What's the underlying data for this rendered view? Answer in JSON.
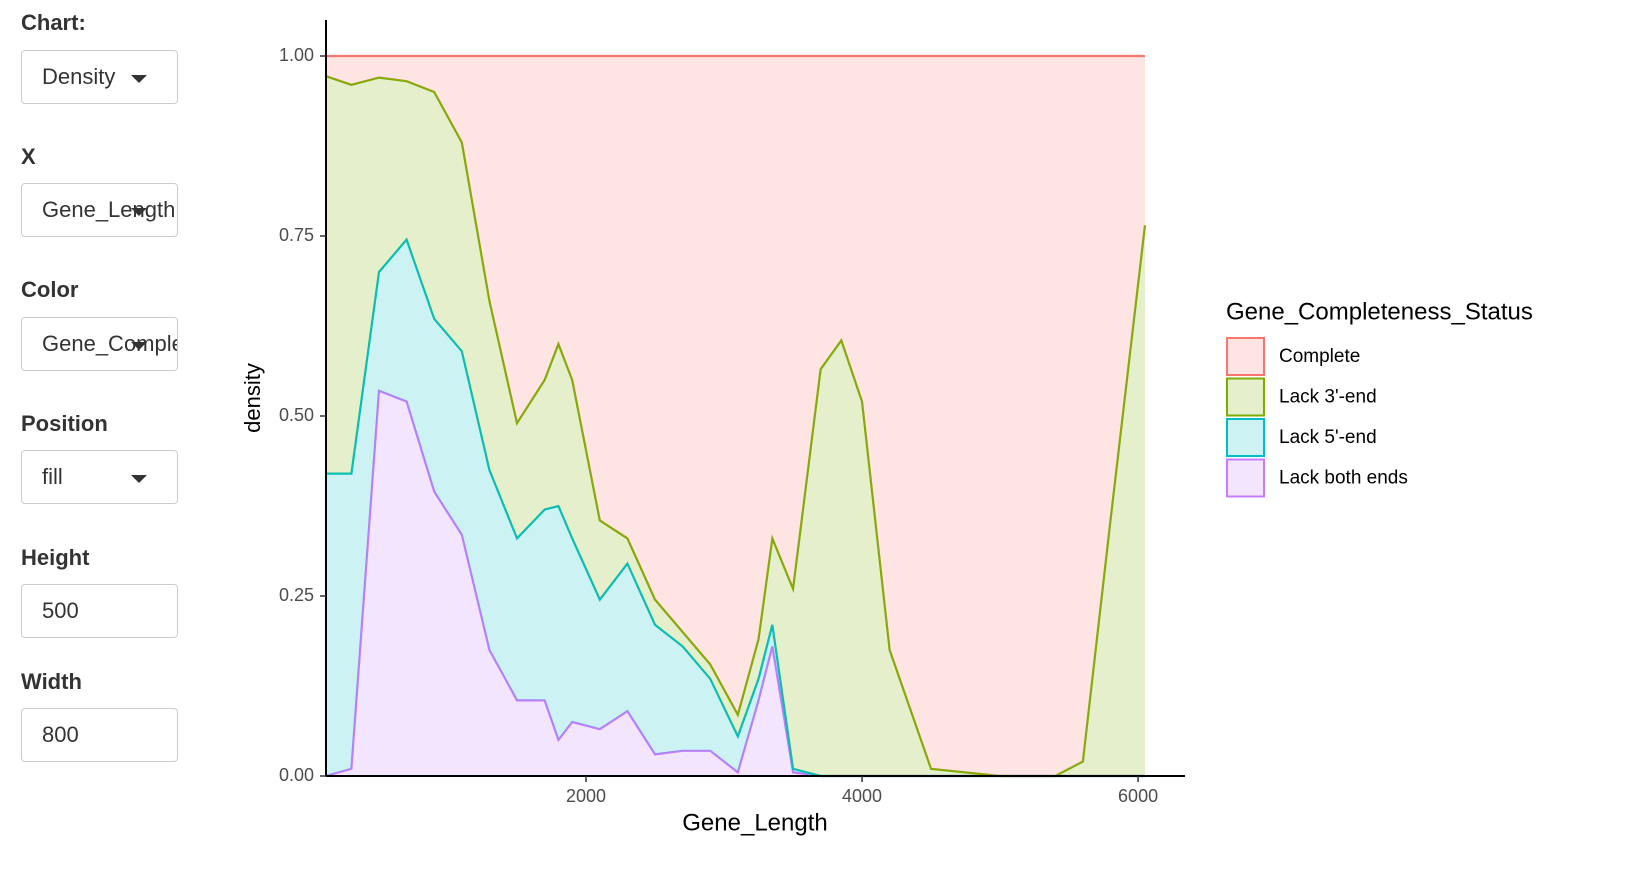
{
  "sidebar": {
    "fields": [
      {
        "label": "Chart:",
        "value": "Density",
        "kind": "select"
      },
      {
        "label": "X",
        "value": "Gene_Length",
        "kind": "select"
      },
      {
        "label": "Color",
        "value": "Gene_Completeness_Status",
        "kind": "select"
      },
      {
        "label": "Position",
        "value": "fill",
        "kind": "select"
      },
      {
        "label": "Height",
        "value": "500",
        "kind": "input"
      },
      {
        "label": "Width",
        "value": "800",
        "kind": "input"
      }
    ]
  },
  "chart_data": {
    "type": "area",
    "stacked": true,
    "x_label": "Gene_Length",
    "y_label": "density",
    "legend_title": "Gene_Completeness_Status",
    "x": [
      116,
      300,
      500,
      700,
      900,
      1100,
      1300,
      1500,
      1700,
      1800,
      1900,
      2100,
      2300,
      2500,
      2700,
      2900,
      3100,
      3250,
      3350,
      3500,
      3700,
      3850,
      4000,
      4200,
      4500,
      5000,
      5400,
      5600,
      5800,
      6050
    ],
    "series": [
      {
        "name": "Complete",
        "color": "#F8766D",
        "values": [
          0.028,
          0.04,
          0.03,
          0.035,
          0.05,
          0.12,
          0.34,
          0.51,
          0.45,
          0.4,
          0.45,
          0.645,
          0.67,
          0.755,
          0.8,
          0.845,
          0.915,
          0.81,
          0.67,
          0.74,
          0.435,
          0.395,
          0.48,
          0.825,
          0.99,
          1,
          1,
          0.98,
          0.645,
          0.235
        ]
      },
      {
        "name": "Lack 3'-end",
        "color": "#7CAE00",
        "values": [
          0.552,
          0.54,
          0.27,
          0.22,
          0.315,
          0.29,
          0.235,
          0.16,
          0.18,
          0.225,
          0.22,
          0.11,
          0.035,
          0.035,
          0.02,
          0.02,
          0.03,
          0.055,
          0.12,
          0.25,
          0.565,
          0.605,
          0.52,
          0.175,
          0.01,
          0,
          0,
          0.02,
          0.355,
          0.765
        ]
      },
      {
        "name": "Lack 5'-end",
        "color": "#00BFC4",
        "values": [
          0.42,
          0.41,
          0.165,
          0.225,
          0.24,
          0.255,
          0.25,
          0.225,
          0.265,
          0.325,
          0.255,
          0.18,
          0.205,
          0.18,
          0.145,
          0.1,
          0.05,
          0.03,
          0.03,
          0.005,
          0,
          0,
          0,
          0,
          0,
          0,
          0,
          0,
          0,
          0
        ]
      },
      {
        "name": "Lack both ends",
        "color": "#C77CFF",
        "values": [
          0,
          0.01,
          0.535,
          0.52,
          0.395,
          0.335,
          0.175,
          0.105,
          0.105,
          0.05,
          0.075,
          0.065,
          0.09,
          0.03,
          0.035,
          0.035,
          0.005,
          0.105,
          0.18,
          0.005,
          0,
          0,
          0,
          0,
          0,
          0,
          0,
          0,
          0,
          0
        ]
      }
    ],
    "xlim": [
      116,
      6340
    ],
    "ylim": [
      0,
      1.05
    ],
    "xticks": [
      2000,
      4000,
      6000
    ],
    "yticks": [
      {
        "value": 0,
        "label": "0.00"
      },
      {
        "value": 0.25,
        "label": "0.25"
      },
      {
        "value": 0.5,
        "label": "0.50"
      },
      {
        "value": 0.75,
        "label": "0.75"
      },
      {
        "value": 1,
        "label": "1.00"
      }
    ],
    "grid": false,
    "legend": "right"
  }
}
